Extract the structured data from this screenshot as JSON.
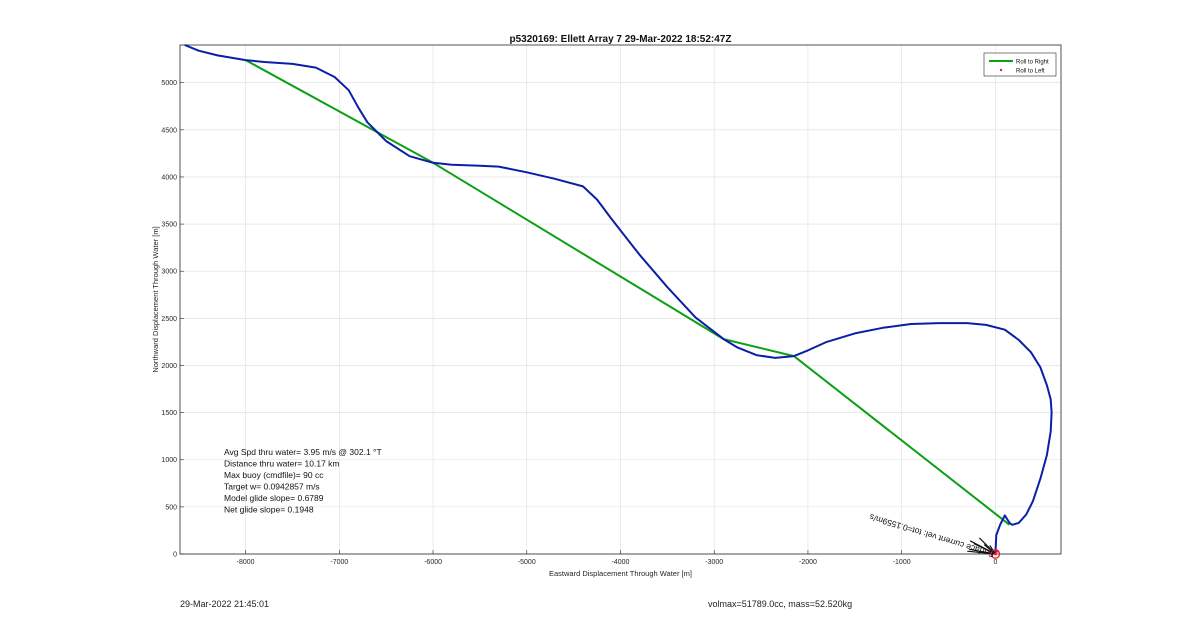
{
  "chart_data": {
    "type": "line",
    "title": "p5320169: Ellett Array 7 29-Mar-2022 18:52:47Z",
    "xlabel": "Eastward Displacement Through Water [m]",
    "ylabel": "Northward Displacement Through Water [m]",
    "xlim": [
      -8700,
      700
    ],
    "ylim": [
      0,
      5400
    ],
    "xticks": [
      -8000,
      -7000,
      -6000,
      -5000,
      -4000,
      -3000,
      -2000,
      -1000,
      0
    ],
    "yticks": [
      0,
      500,
      1000,
      1500,
      2000,
      2500,
      3000,
      3500,
      4000,
      4500,
      5000
    ],
    "grid": true,
    "legend": {
      "position": "top-right",
      "entries": [
        {
          "label": "Roll to Right",
          "color": "#0aa014",
          "marker": "line"
        },
        {
          "label": "Roll to Left",
          "color": "#e8202a",
          "marker": "dot"
        }
      ]
    },
    "series": [
      {
        "name": "",
        "color": "#0b1ea8",
        "x": [
          -8650,
          -8500,
          -8300,
          -8000,
          -7800,
          -7500,
          -7250,
          -7050,
          -6900,
          -6800,
          -6700,
          -6500,
          -6250,
          -6000,
          -5800,
          -5500,
          -5300,
          -5000,
          -4700,
          -4400,
          -4250,
          -4100,
          -3800,
          -3500,
          -3200,
          -2900,
          -2750,
          -2550,
          -2350,
          -2150,
          -2000,
          -1800,
          -1500,
          -1200,
          -900,
          -600,
          -300,
          -100,
          100,
          250,
          380,
          480,
          550,
          590,
          600,
          590,
          550,
          480,
          400,
          330,
          250,
          180,
          150,
          100,
          50,
          10,
          0
        ],
        "y": [
          5400,
          5340,
          5290,
          5240,
          5220,
          5200,
          5160,
          5060,
          4920,
          4740,
          4580,
          4380,
          4220,
          4150,
          4130,
          4120,
          4110,
          4050,
          3980,
          3900,
          3760,
          3560,
          3180,
          2830,
          2510,
          2280,
          2190,
          2110,
          2080,
          2100,
          2160,
          2250,
          2340,
          2400,
          2440,
          2450,
          2450,
          2430,
          2380,
          2270,
          2140,
          1980,
          1790,
          1640,
          1500,
          1300,
          1050,
          800,
          560,
          420,
          330,
          310,
          330,
          410,
          310,
          200,
          0
        ]
      },
      {
        "name": "Roll to Right",
        "color": "#0aa014",
        "x": [
          -8000,
          -6000,
          -2900,
          -2150,
          150
        ],
        "y": [
          5240,
          4150,
          2280,
          2100,
          310
        ]
      }
    ],
    "left_markers": [
      [
        0,
        0
      ],
      [
        20,
        30
      ]
    ],
    "vectors": [
      [
        0,
        0,
        -280,
        50
      ],
      [
        0,
        0,
        -270,
        140
      ],
      [
        0,
        0,
        -230,
        110
      ],
      [
        0,
        0,
        -170,
        170
      ],
      [
        0,
        0,
        -120,
        100
      ],
      [
        0,
        0,
        -60,
        90
      ],
      [
        0,
        0,
        -300,
        30
      ]
    ],
    "annotations": [
      {
        "text": "Avg Spd thru water=  3.95 m/s @ 302.1 °T"
      },
      {
        "text": "Distance thru water= 10.17 km"
      },
      {
        "text": "Max buoy (cmdfile)= 90 cc"
      },
      {
        "text": "Target w= 0.0942857 m/s"
      },
      {
        "text": "Model glide slope= 0.6789"
      },
      {
        "text": "Net glide slope= 0.1948"
      }
    ],
    "vector_label": "Surface current vel: tot=0.1559m/s"
  },
  "footer": {
    "timestamp": "29-Mar-2022 21:45:01",
    "summary": "volmax=51789.0cc, mass=52.520kg"
  }
}
